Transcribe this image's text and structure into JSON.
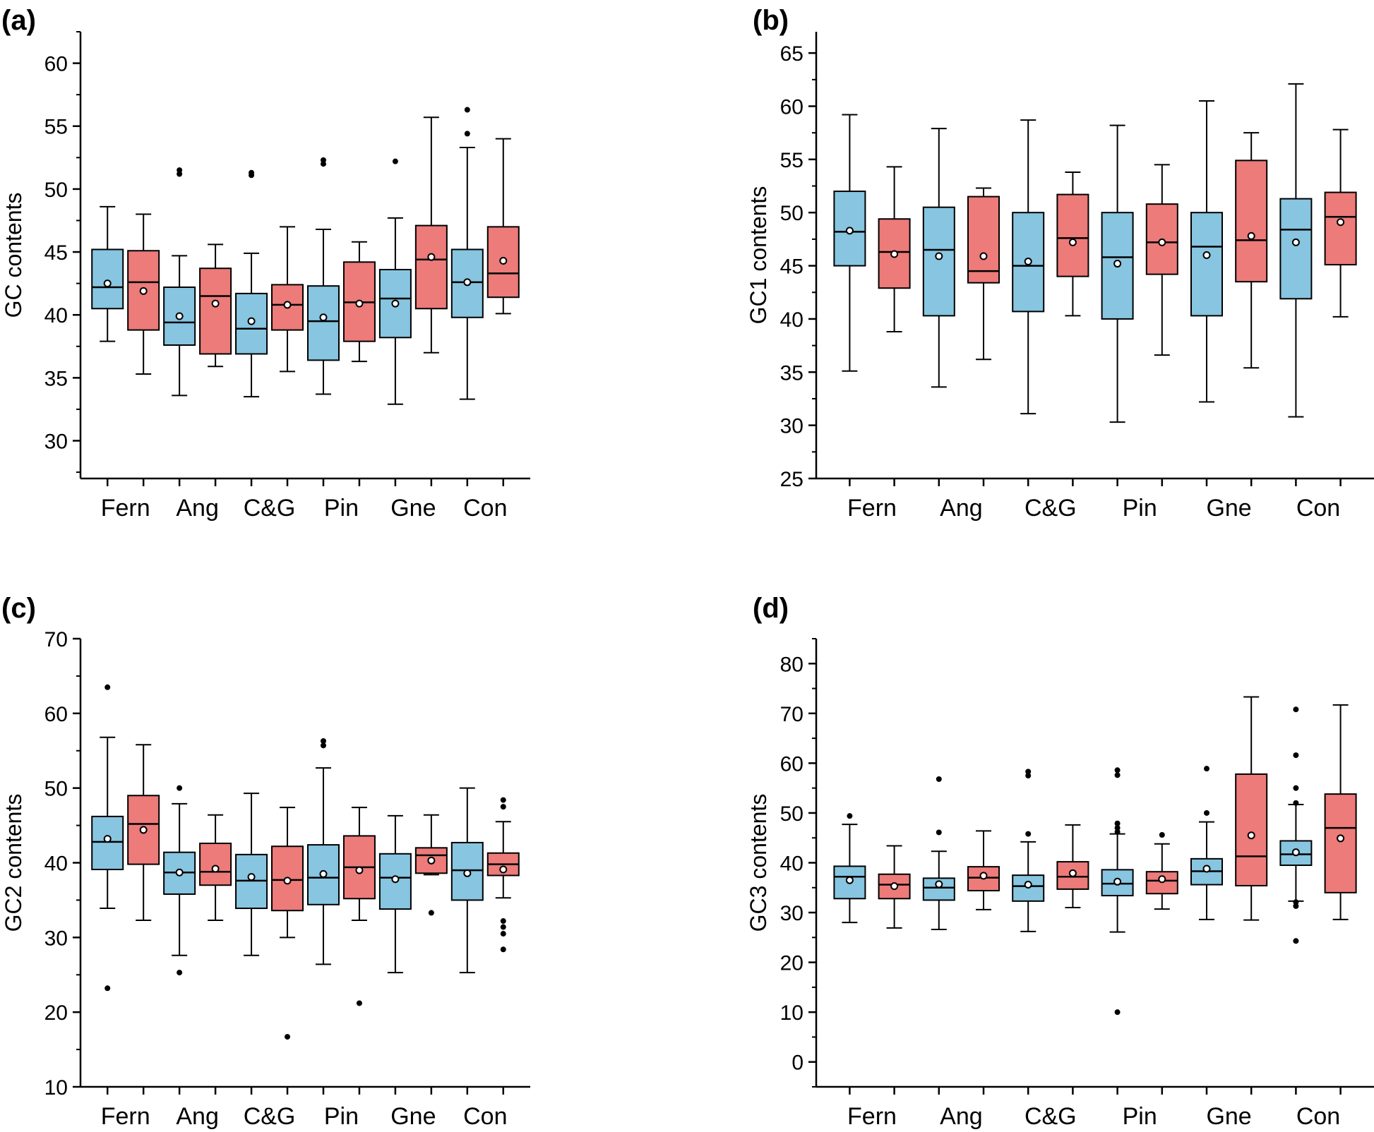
{
  "colors": {
    "blue": "#87c5e0",
    "red": "#ec7b79",
    "stroke": "#000000"
  },
  "chart_data": [
    {
      "type": "box",
      "panel_label": "(a)",
      "ylabel": "GC contents",
      "ylim": [
        27,
        62.5
      ],
      "yticks": [
        30,
        35,
        40,
        45,
        50,
        55,
        60
      ],
      "groups": [
        "Fern",
        "Ang",
        "C&G",
        "Pin",
        "Gne",
        "Con"
      ],
      "boxes": [
        {
          "color": "blue",
          "min": 37.9,
          "q1": 40.5,
          "median": 42.2,
          "q3": 45.2,
          "max": 48.6,
          "mean": 42.5,
          "outliers": []
        },
        {
          "color": "red",
          "min": 35.3,
          "q1": 38.8,
          "median": 42.6,
          "q3": 45.1,
          "max": 48.0,
          "mean": 41.9,
          "outliers": []
        },
        {
          "color": "blue",
          "min": 33.6,
          "q1": 37.6,
          "median": 39.4,
          "q3": 42.2,
          "max": 44.7,
          "mean": 39.9,
          "outliers": [
            51.2,
            51.5
          ]
        },
        {
          "color": "red",
          "min": 35.9,
          "q1": 36.9,
          "median": 41.5,
          "q3": 43.7,
          "max": 45.6,
          "mean": 40.9,
          "outliers": []
        },
        {
          "color": "blue",
          "min": 33.5,
          "q1": 36.9,
          "median": 38.9,
          "q3": 41.7,
          "max": 44.9,
          "mean": 39.5,
          "outliers": [
            51.1,
            51.3
          ]
        },
        {
          "color": "red",
          "min": 35.5,
          "q1": 38.8,
          "median": 40.8,
          "q3": 42.4,
          "max": 47.0,
          "mean": 40.8,
          "outliers": []
        },
        {
          "color": "blue",
          "min": 33.7,
          "q1": 36.4,
          "median": 39.5,
          "q3": 42.3,
          "max": 46.8,
          "mean": 39.8,
          "outliers": [
            52.0,
            52.3
          ]
        },
        {
          "color": "red",
          "min": 36.3,
          "q1": 37.9,
          "median": 41.0,
          "q3": 44.2,
          "max": 45.8,
          "mean": 40.9,
          "outliers": []
        },
        {
          "color": "blue",
          "min": 32.9,
          "q1": 38.2,
          "median": 41.3,
          "q3": 43.6,
          "max": 47.7,
          "mean": 40.9,
          "outliers": [
            52.2
          ]
        },
        {
          "color": "red",
          "min": 37.0,
          "q1": 40.5,
          "median": 44.4,
          "q3": 47.1,
          "max": 55.7,
          "mean": 44.6,
          "outliers": []
        },
        {
          "color": "blue",
          "min": 33.3,
          "q1": 39.8,
          "median": 42.6,
          "q3": 45.2,
          "max": 53.3,
          "mean": 42.6,
          "outliers": [
            54.4,
            56.3
          ]
        },
        {
          "color": "red",
          "min": 40.1,
          "q1": 41.4,
          "median": 43.3,
          "q3": 47.0,
          "max": 54.0,
          "mean": 44.3,
          "outliers": []
        }
      ]
    },
    {
      "type": "box",
      "panel_label": "(b)",
      "ylabel": "GC1 contents",
      "ylim": [
        25,
        67
      ],
      "yticks": [
        25,
        30,
        35,
        40,
        45,
        50,
        55,
        60,
        65
      ],
      "groups": [
        "Fern",
        "Ang",
        "C&G",
        "Pin",
        "Gne",
        "Con"
      ],
      "boxes": [
        {
          "color": "blue",
          "min": 35.1,
          "q1": 45.0,
          "median": 48.2,
          "q3": 52.0,
          "max": 59.2,
          "mean": 48.3,
          "outliers": []
        },
        {
          "color": "red",
          "min": 38.8,
          "q1": 42.9,
          "median": 46.3,
          "q3": 49.4,
          "max": 54.3,
          "mean": 46.1,
          "outliers": []
        },
        {
          "color": "blue",
          "min": 33.6,
          "q1": 40.3,
          "median": 46.5,
          "q3": 50.5,
          "max": 57.9,
          "mean": 45.9,
          "outliers": []
        },
        {
          "color": "red",
          "min": 36.2,
          "q1": 43.4,
          "median": 44.5,
          "q3": 51.5,
          "max": 52.3,
          "mean": 45.9,
          "outliers": []
        },
        {
          "color": "blue",
          "min": 31.1,
          "q1": 40.7,
          "median": 45.0,
          "q3": 50.0,
          "max": 58.7,
          "mean": 45.4,
          "outliers": []
        },
        {
          "color": "red",
          "min": 40.3,
          "q1": 44.0,
          "median": 47.6,
          "q3": 51.7,
          "max": 53.8,
          "mean": 47.2,
          "outliers": []
        },
        {
          "color": "blue",
          "min": 30.3,
          "q1": 40.0,
          "median": 45.8,
          "q3": 50.0,
          "max": 58.2,
          "mean": 45.2,
          "outliers": []
        },
        {
          "color": "red",
          "min": 36.6,
          "q1": 44.2,
          "median": 47.2,
          "q3": 50.8,
          "max": 54.5,
          "mean": 47.2,
          "outliers": []
        },
        {
          "color": "blue",
          "min": 32.2,
          "q1": 40.3,
          "median": 46.8,
          "q3": 50.0,
          "max": 60.5,
          "mean": 46.0,
          "outliers": []
        },
        {
          "color": "red",
          "min": 35.4,
          "q1": 43.5,
          "median": 47.4,
          "q3": 54.9,
          "max": 57.5,
          "mean": 47.8,
          "outliers": []
        },
        {
          "color": "blue",
          "min": 30.8,
          "q1": 41.9,
          "median": 48.4,
          "q3": 51.3,
          "max": 62.1,
          "mean": 47.2,
          "outliers": []
        },
        {
          "color": "red",
          "min": 40.2,
          "q1": 45.1,
          "median": 49.6,
          "q3": 51.9,
          "max": 57.8,
          "mean": 49.1,
          "outliers": []
        }
      ]
    },
    {
      "type": "box",
      "panel_label": "(c)",
      "ylabel": "GC2 contents",
      "ylim": [
        10,
        70
      ],
      "yticks": [
        10,
        20,
        30,
        40,
        50,
        60,
        70
      ],
      "groups": [
        "Fern",
        "Ang",
        "C&G",
        "Pin",
        "Gne",
        "Con"
      ],
      "boxes": [
        {
          "color": "blue",
          "min": 33.9,
          "q1": 39.1,
          "median": 42.8,
          "q3": 46.2,
          "max": 56.8,
          "mean": 43.2,
          "outliers": [
            63.5,
            23.2
          ]
        },
        {
          "color": "red",
          "min": 32.3,
          "q1": 39.8,
          "median": 45.2,
          "q3": 49.0,
          "max": 55.8,
          "mean": 44.4,
          "outliers": []
        },
        {
          "color": "blue",
          "min": 27.6,
          "q1": 35.8,
          "median": 38.7,
          "q3": 41.4,
          "max": 47.9,
          "mean": 38.7,
          "outliers": [
            50.0,
            25.3
          ]
        },
        {
          "color": "red",
          "min": 32.3,
          "q1": 37.0,
          "median": 38.8,
          "q3": 42.6,
          "max": 46.4,
          "mean": 39.2,
          "outliers": []
        },
        {
          "color": "blue",
          "min": 27.6,
          "q1": 33.9,
          "median": 37.6,
          "q3": 41.1,
          "max": 49.3,
          "mean": 38.1,
          "outliers": []
        },
        {
          "color": "red",
          "min": 30.0,
          "q1": 33.6,
          "median": 37.7,
          "q3": 42.2,
          "max": 47.4,
          "mean": 37.6,
          "outliers": [
            16.7
          ]
        },
        {
          "color": "blue",
          "min": 26.4,
          "q1": 34.4,
          "median": 38.0,
          "q3": 42.4,
          "max": 52.7,
          "mean": 38.5,
          "outliers": [
            55.7,
            56.3
          ]
        },
        {
          "color": "red",
          "min": 32.3,
          "q1": 35.2,
          "median": 39.4,
          "q3": 43.6,
          "max": 47.4,
          "mean": 39.0,
          "outliers": [
            21.2
          ]
        },
        {
          "color": "blue",
          "min": 25.3,
          "q1": 33.8,
          "median": 38.0,
          "q3": 41.2,
          "max": 46.3,
          "mean": 37.8,
          "outliers": []
        },
        {
          "color": "red",
          "min": 38.4,
          "q1": 38.6,
          "median": 41.0,
          "q3": 42.0,
          "max": 46.4,
          "mean": 40.3,
          "outliers": [
            33.3
          ]
        },
        {
          "color": "blue",
          "min": 25.3,
          "q1": 35.0,
          "median": 39.0,
          "q3": 42.7,
          "max": 50.0,
          "mean": 38.6,
          "outliers": []
        },
        {
          "color": "red",
          "min": 35.3,
          "q1": 38.3,
          "median": 39.8,
          "q3": 41.3,
          "max": 45.5,
          "mean": 39.1,
          "outliers": [
            47.5,
            48.4,
            32.2,
            31.4,
            30.5,
            28.4
          ]
        }
      ]
    },
    {
      "type": "box",
      "panel_label": "(d)",
      "ylabel": "GC3 contents",
      "ylim": [
        -5,
        85
      ],
      "yticks": [
        0,
        10,
        20,
        30,
        40,
        50,
        60,
        70,
        80
      ],
      "groups": [
        "Fern",
        "Ang",
        "C&G",
        "Pin",
        "Gne",
        "Con"
      ],
      "boxes": [
        {
          "color": "blue",
          "min": 28.0,
          "q1": 32.8,
          "median": 37.2,
          "q3": 39.3,
          "max": 47.7,
          "mean": 36.5,
          "outliers": [
            49.4
          ]
        },
        {
          "color": "red",
          "min": 26.9,
          "q1": 32.8,
          "median": 35.6,
          "q3": 37.7,
          "max": 43.4,
          "mean": 35.3,
          "outliers": []
        },
        {
          "color": "blue",
          "min": 26.6,
          "q1": 32.5,
          "median": 35.0,
          "q3": 36.9,
          "max": 42.3,
          "mean": 35.7,
          "outliers": [
            56.8,
            46.1
          ]
        },
        {
          "color": "red",
          "min": 30.6,
          "q1": 34.4,
          "median": 37.0,
          "q3": 39.2,
          "max": 46.4,
          "mean": 37.4,
          "outliers": []
        },
        {
          "color": "blue",
          "min": 26.2,
          "q1": 32.3,
          "median": 35.3,
          "q3": 37.5,
          "max": 44.2,
          "mean": 35.6,
          "outliers": [
            58.3,
            57.5,
            45.8
          ]
        },
        {
          "color": "red",
          "min": 31.0,
          "q1": 34.7,
          "median": 37.2,
          "q3": 40.2,
          "max": 47.6,
          "mean": 37.9,
          "outliers": []
        },
        {
          "color": "blue",
          "min": 26.1,
          "q1": 33.4,
          "median": 35.8,
          "q3": 38.6,
          "max": 45.8,
          "mean": 36.2,
          "outliers": [
            58.6,
            57.6,
            47.9,
            47.0,
            46.2,
            10.0
          ]
        },
        {
          "color": "red",
          "min": 30.7,
          "q1": 33.8,
          "median": 36.4,
          "q3": 38.2,
          "max": 43.8,
          "mean": 36.7,
          "outliers": [
            45.6
          ]
        },
        {
          "color": "blue",
          "min": 28.6,
          "q1": 35.6,
          "median": 38.3,
          "q3": 40.8,
          "max": 48.2,
          "mean": 38.8,
          "outliers": [
            58.9,
            50.0
          ]
        },
        {
          "color": "red",
          "min": 28.5,
          "q1": 35.4,
          "median": 41.3,
          "q3": 57.8,
          "max": 73.3,
          "mean": 45.5,
          "outliers": []
        },
        {
          "color": "blue",
          "min": 32.3,
          "q1": 39.5,
          "median": 41.7,
          "q3": 44.4,
          "max": 51.7,
          "mean": 42.1,
          "outliers": [
            70.8,
            61.6,
            55.0,
            52.0,
            32.1,
            31.3,
            24.3
          ]
        },
        {
          "color": "red",
          "min": 28.6,
          "q1": 34.0,
          "median": 47.0,
          "q3": 53.8,
          "max": 71.7,
          "mean": 44.9,
          "outliers": []
        }
      ]
    }
  ]
}
